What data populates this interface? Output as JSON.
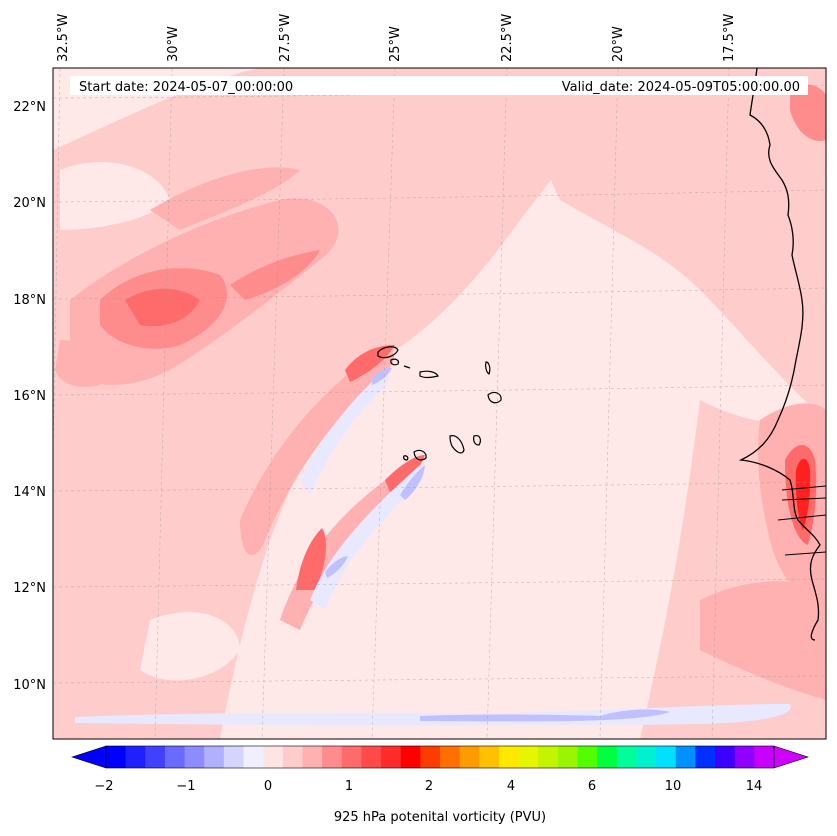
{
  "map": {
    "start_date_label": "Start date: 2024-05-07_00:00:00",
    "valid_date_label": "Valid_date: 2024-05-09T05:00:00.00",
    "lon_labels": [
      "32.5°W",
      "30°W",
      "27.5°W",
      "25°W",
      "22.5°W",
      "20°W",
      "17.5°W"
    ],
    "lat_labels": [
      "22°N",
      "20°N",
      "18°N",
      "16°N",
      "14°N",
      "12°N",
      "10°N"
    ],
    "extent": {
      "lon_min": -32.7,
      "lon_max": -15.2,
      "lat_min": 8.9,
      "lat_max": 22.8
    },
    "projection": "rotated / conic (curved graticule)",
    "gridlines": true,
    "coastlines": true
  },
  "colorbar": {
    "label": "925 hPa potenital vorticity (PVU)",
    "tick_labels": [
      "−2",
      "−1",
      "0",
      "1",
      "2",
      "4",
      "6",
      "10",
      "14"
    ],
    "extend": "both",
    "colors": [
      "#0000ff",
      "#2020ff",
      "#4040ff",
      "#6a6aff",
      "#8c8cff",
      "#b0b0ff",
      "#d4d4ff",
      "#efefff",
      "#ffe4e4",
      "#ffcccc",
      "#ffb0b0",
      "#ff8c8c",
      "#ff6a6a",
      "#ff4a4a",
      "#ff2a2a",
      "#ff0000",
      "#ff3c00",
      "#ff7000",
      "#ff9a00",
      "#ffc000",
      "#ffe800",
      "#e8f500",
      "#c4f500",
      "#9af500",
      "#50ff00",
      "#00ff40",
      "#00ff98",
      "#00f0d0",
      "#00e0ff",
      "#0090ff",
      "#0030ff",
      "#3c00ff",
      "#9000ff",
      "#c800ff"
    ],
    "min_color": "#0000ff",
    "max_color": "#d000ff"
  },
  "field_colors": {
    "background": "#ffe8e8",
    "light_pink": "#ffcccc",
    "pink": "#ffb0b0",
    "medium_red": "#ff8c8c",
    "red": "#ff5050",
    "deep_red": "#ff2020",
    "light_blue": "#e8e8ff",
    "blue": "#c0c0ff"
  }
}
